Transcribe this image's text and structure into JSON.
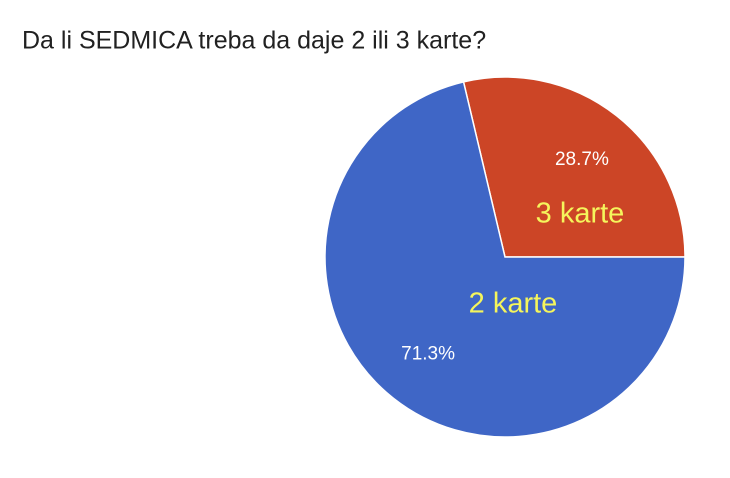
{
  "chart_data": {
    "type": "pie",
    "title": "Da li SEDMICA treba da daje 2 ili 3 karte?",
    "categories": [
      "3 karte",
      "2 karte"
    ],
    "values": [
      28.7,
      71.3
    ],
    "value_labels": [
      "28.7%",
      "71.3%"
    ],
    "colors": [
      "#cc4526",
      "#3f66c6"
    ]
  }
}
